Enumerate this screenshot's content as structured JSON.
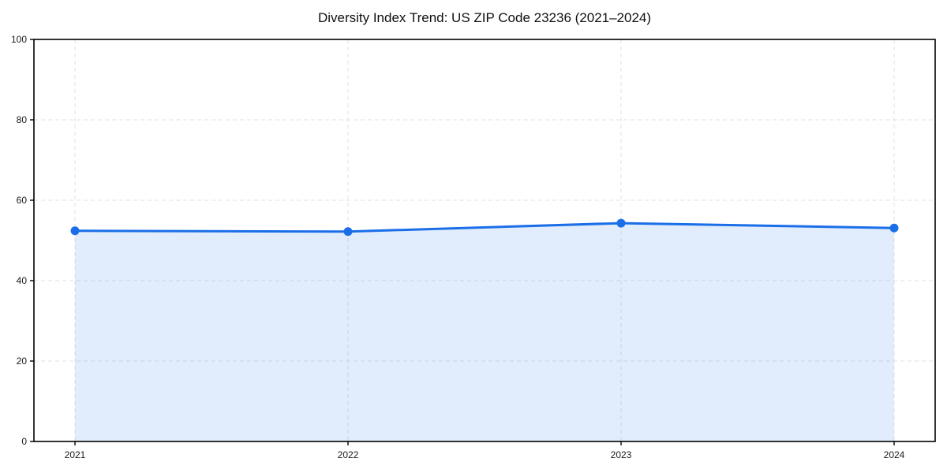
{
  "title": "Diversity Index Trend: US ZIP Code 23236 (2021–2024)",
  "chart_data": {
    "type": "area",
    "title": "Diversity Index Trend: US ZIP Code 23236 (2021–2024)",
    "x": [
      "2021",
      "2022",
      "2023",
      "2024"
    ],
    "series": [
      {
        "name": "Diversity Index",
        "values": [
          52.4,
          52.2,
          54.3,
          53.1
        ]
      }
    ],
    "xlabel": "",
    "ylabel": "",
    "ylim": [
      0,
      100
    ],
    "yticks": [
      0,
      20,
      40,
      60,
      80,
      100
    ],
    "grid": "dashed",
    "legend_position": "none",
    "colors": {
      "line": "#1a6fe8",
      "marker": "#1a6fe8",
      "fill": "rgba(26,111,232,0.13)",
      "grid": "#e2e2e2",
      "spine": "#000000",
      "tick_text": "#1a1a1a"
    }
  }
}
